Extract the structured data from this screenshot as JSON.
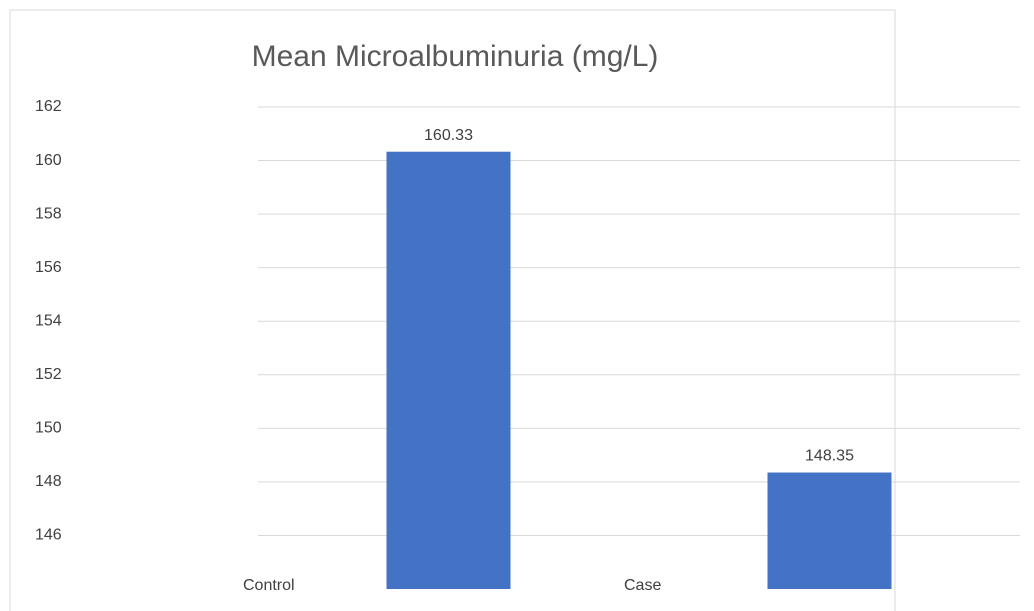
{
  "chart_data": {
    "type": "bar",
    "title": "Mean Microalbuminuria (mg/L)",
    "categories": [
      "Control",
      "Case"
    ],
    "values": [
      160.33,
      148.35
    ],
    "color": "#4472c4",
    "ylim": [
      144,
      162
    ],
    "yticks": [
      146,
      148,
      150,
      152,
      154,
      156,
      158,
      160,
      162
    ],
    "grid": true
  }
}
